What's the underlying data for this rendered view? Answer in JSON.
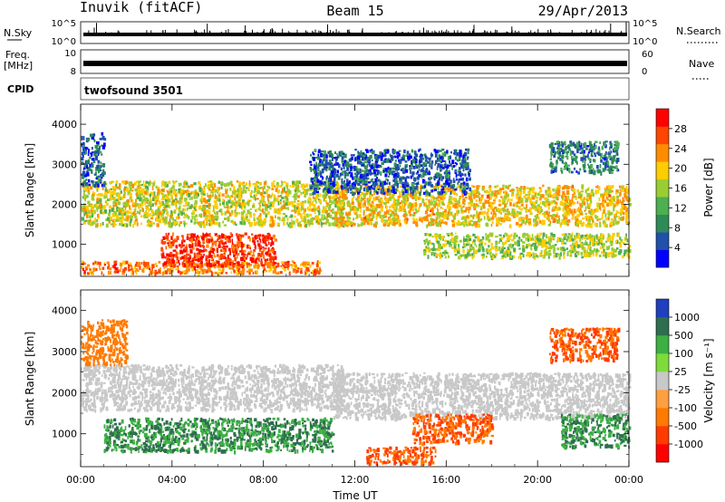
{
  "header": {
    "station": "Inuvik (fitACF)",
    "beam": "Beam 15",
    "date": "29/Apr/2013"
  },
  "top_panels": {
    "nsky_label": "N.Sky",
    "nsky_ticks": [
      "10^5",
      "10^0"
    ],
    "nsearch_label": "N.Search",
    "nsearch_right_ticks": [
      "10^5",
      "10^0"
    ],
    "freq_label_line1": "Freq.",
    "freq_label_line2": "[MHz]",
    "freq_ticks": [
      "10",
      "8"
    ],
    "nave_label": "Nave",
    "nave_ticks": [
      "60",
      "0"
    ],
    "cpid_label": "CPID",
    "cpid_value": "twofsound 3501"
  },
  "colors": {
    "power_scale": [
      "#0000ff",
      "#2050a8",
      "#2e8b57",
      "#4caf50",
      "#9acd32",
      "#ffcc00",
      "#ff8c00",
      "#ff4500",
      "#ff0000"
    ],
    "velocity_scale": [
      "#1f3fbf",
      "#2e6e4e",
      "#3cb043",
      "#7ddc3a",
      "#c8c8c8",
      "#ff9f40",
      "#ff7a00",
      "#ff3b00",
      "#ff0000"
    ]
  },
  "chart_data": [
    {
      "type": "heatmap",
      "name": "power",
      "ylabel": "Slant Range [km]",
      "xlabel": "",
      "x_ticks": [
        "00:00",
        "04:00",
        "08:00",
        "12:00",
        "16:00",
        "20:00",
        "00:00"
      ],
      "x_hours": [
        0,
        4,
        8,
        12,
        16,
        20,
        24
      ],
      "xlim": [
        0,
        24
      ],
      "y_ticks": [
        1000,
        2000,
        3000,
        4000
      ],
      "ylim": [
        200,
        4500
      ],
      "colorbar_label": "Power [dB]",
      "colorbar_ticks": [
        "28",
        "24",
        "20",
        "16",
        "12",
        "8",
        "4"
      ],
      "colorbar_range": [
        0,
        32
      ],
      "regions": [
        {
          "t0": 0.0,
          "t1": 10.5,
          "r0": 300,
          "r1": 600,
          "value": 24
        },
        {
          "t0": 3.5,
          "t1": 8.5,
          "r0": 500,
          "r1": 1300,
          "value": 28
        },
        {
          "t0": 0.0,
          "t1": 11.5,
          "r0": 1500,
          "r1": 2600,
          "value": 18
        },
        {
          "t0": 11.0,
          "t1": 24.0,
          "r0": 1500,
          "r1": 2500,
          "value": 20
        },
        {
          "t0": 15.0,
          "t1": 24.0,
          "r0": 700,
          "r1": 1300,
          "value": 16
        },
        {
          "t0": 0.0,
          "t1": 1.0,
          "r0": 2500,
          "r1": 3800,
          "value": 6
        },
        {
          "t0": 10.0,
          "t1": 17.0,
          "r0": 2300,
          "r1": 3400,
          "value": 6
        },
        {
          "t0": 20.5,
          "t1": 23.5,
          "r0": 2800,
          "r1": 3600,
          "value": 8
        }
      ]
    },
    {
      "type": "heatmap",
      "name": "velocity",
      "ylabel": "Slant Range [km]",
      "xlabel": "Time UT",
      "x_ticks": [
        "00:00",
        "04:00",
        "08:00",
        "12:00",
        "16:00",
        "20:00",
        "00:00"
      ],
      "x_hours": [
        0,
        4,
        8,
        12,
        16,
        20,
        24
      ],
      "xlim": [
        0,
        24
      ],
      "y_ticks": [
        1000,
        2000,
        3000,
        4000
      ],
      "ylim": [
        200,
        4500
      ],
      "colorbar_label": "Velocity [m s⁻¹]",
      "colorbar_ticks": [
        "1000",
        "500",
        "100",
        "25",
        "-25",
        "-100",
        "-500",
        "-1000"
      ],
      "regions": [
        {
          "t0": 0.0,
          "t1": 11.5,
          "r0": 1600,
          "r1": 2700,
          "value": 0
        },
        {
          "t0": 11.0,
          "t1": 24.0,
          "r0": 1400,
          "r1": 2500,
          "value": 0
        },
        {
          "t0": 1.0,
          "t1": 11.0,
          "r0": 600,
          "r1": 1400,
          "value": 300
        },
        {
          "t0": 14.5,
          "t1": 18.0,
          "r0": 800,
          "r1": 1500,
          "value": -300
        },
        {
          "t0": 12.5,
          "t1": 15.5,
          "r0": 300,
          "r1": 700,
          "value": -300
        },
        {
          "t0": 20.5,
          "t1": 23.5,
          "r0": 2800,
          "r1": 3600,
          "value": -300
        },
        {
          "t0": 0.0,
          "t1": 2.0,
          "r0": 2700,
          "r1": 3800,
          "value": -200
        },
        {
          "t0": 21.0,
          "t1": 24.0,
          "r0": 700,
          "r1": 1500,
          "value": 300
        }
      ]
    }
  ]
}
